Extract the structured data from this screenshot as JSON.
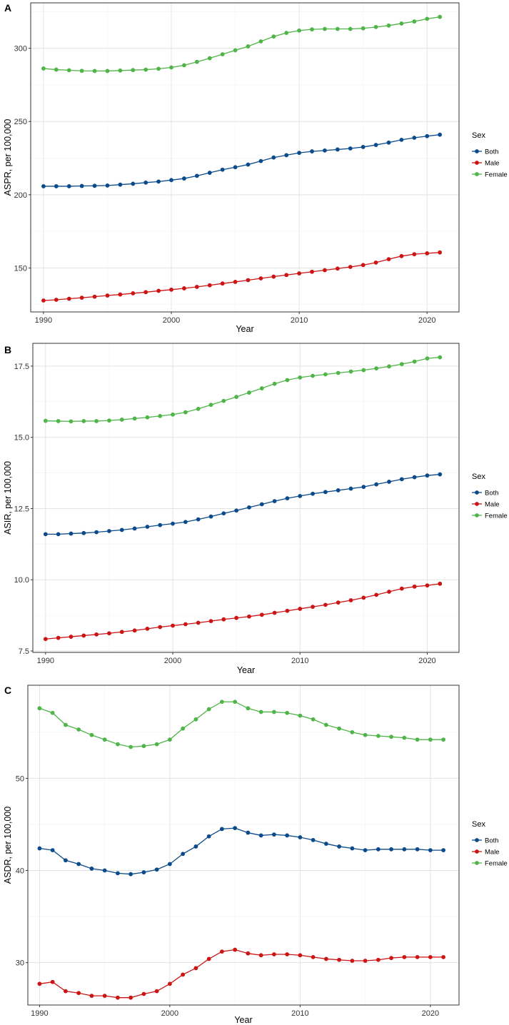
{
  "colors": {
    "Both": "#0b4a8b",
    "Male": "#cc1414",
    "Female": "#4fb548"
  },
  "legend": {
    "title": "Sex",
    "entries": [
      "Both",
      "Male",
      "Female"
    ]
  },
  "chart_data": [
    {
      "type": "line",
      "panel": "A",
      "xlabel": "Year",
      "ylabel": "ASPR, per 100,000",
      "xlim": [
        1989,
        2022.5
      ],
      "ylim": [
        120,
        331
      ],
      "xticks": [
        1990,
        2000,
        2010,
        2020
      ],
      "yticks": [
        150,
        200,
        250,
        300
      ],
      "grid": true,
      "legend_position": "right",
      "x": [
        1990,
        1991,
        1992,
        1993,
        1994,
        1995,
        1996,
        1997,
        1998,
        1999,
        2000,
        2001,
        2002,
        2003,
        2004,
        2005,
        2006,
        2007,
        2008,
        2009,
        2010,
        2011,
        2012,
        2013,
        2014,
        2015,
        2016,
        2017,
        2018,
        2019,
        2020,
        2021
      ],
      "series": [
        {
          "name": "Both",
          "values": [
            205.8,
            205.8,
            205.8,
            206.0,
            206.1,
            206.3,
            206.9,
            207.5,
            208.3,
            209.0,
            210.0,
            211.1,
            212.9,
            215.0,
            217.1,
            218.8,
            220.6,
            223.0,
            225.4,
            227.0,
            228.6,
            229.6,
            230.2,
            230.9,
            231.6,
            232.6,
            234.0,
            235.6,
            237.5,
            238.9,
            240.0,
            241.0
          ]
        },
        {
          "name": "Male",
          "values": [
            127.8,
            128.3,
            129.0,
            129.7,
            130.4,
            131.2,
            131.9,
            132.7,
            133.5,
            134.4,
            135.2,
            136.1,
            137.1,
            138.2,
            139.4,
            140.5,
            141.7,
            142.9,
            144.1,
            145.2,
            146.3,
            147.4,
            148.5,
            149.6,
            150.7,
            152.0,
            153.7,
            156.0,
            158.1,
            159.4,
            160.0,
            160.6
          ]
        },
        {
          "name": "Female",
          "values": [
            286.2,
            285.4,
            285.0,
            284.6,
            284.5,
            284.5,
            284.8,
            285.1,
            285.4,
            286.0,
            286.9,
            288.4,
            290.7,
            293.2,
            295.9,
            298.6,
            301.3,
            304.7,
            308.0,
            310.5,
            312.1,
            312.9,
            313.2,
            313.2,
            313.2,
            313.6,
            314.5,
            315.5,
            316.9,
            318.3,
            320.1,
            321.4
          ]
        }
      ]
    },
    {
      "type": "line",
      "panel": "B",
      "xlabel": "Year",
      "ylabel": "ASIR, per 100,000",
      "xlim": [
        1989,
        2022.5
      ],
      "ylim": [
        7.45,
        18.3
      ],
      "xticks": [
        1990,
        2000,
        2010,
        2020
      ],
      "yticks": [
        7.5,
        10.0,
        12.5,
        15.0,
        17.5
      ],
      "yticklabels": [
        "7.5",
        "10.0",
        "12.5",
        "15.0",
        "17.5"
      ],
      "grid": true,
      "legend_position": "right",
      "x": [
        1990,
        1991,
        1992,
        1993,
        1994,
        1995,
        1996,
        1997,
        1998,
        1999,
        2000,
        2001,
        2002,
        2003,
        2004,
        2005,
        2006,
        2007,
        2008,
        2009,
        2010,
        2011,
        2012,
        2013,
        2014,
        2015,
        2016,
        2017,
        2018,
        2019,
        2020,
        2021
      ],
      "series": [
        {
          "name": "Both",
          "values": [
            11.6,
            11.6,
            11.62,
            11.64,
            11.67,
            11.71,
            11.75,
            11.8,
            11.86,
            11.92,
            11.97,
            12.03,
            12.12,
            12.22,
            12.33,
            12.43,
            12.54,
            12.65,
            12.76,
            12.86,
            12.94,
            13.02,
            13.08,
            13.14,
            13.2,
            13.26,
            13.35,
            13.44,
            13.53,
            13.6,
            13.66,
            13.7
          ]
        },
        {
          "name": "Male",
          "values": [
            7.92,
            7.96,
            8.0,
            8.04,
            8.08,
            8.12,
            8.17,
            8.22,
            8.28,
            8.34,
            8.39,
            8.44,
            8.49,
            8.55,
            8.61,
            8.66,
            8.71,
            8.77,
            8.84,
            8.91,
            8.98,
            9.05,
            9.12,
            9.2,
            9.28,
            9.37,
            9.47,
            9.58,
            9.69,
            9.76,
            9.8,
            9.86
          ]
        },
        {
          "name": "Female",
          "values": [
            15.58,
            15.57,
            15.56,
            15.57,
            15.57,
            15.59,
            15.62,
            15.66,
            15.7,
            15.75,
            15.8,
            15.88,
            16.0,
            16.14,
            16.28,
            16.42,
            16.57,
            16.72,
            16.88,
            17.01,
            17.1,
            17.16,
            17.21,
            17.26,
            17.31,
            17.36,
            17.42,
            17.49,
            17.57,
            17.66,
            17.77,
            17.81
          ]
        }
      ]
    },
    {
      "type": "line",
      "panel": "C",
      "xlabel": "Year",
      "ylabel": "ASDR, per 100,000",
      "xlim": [
        1989.1,
        2022.2
      ],
      "ylim": [
        25.4,
        60.1
      ],
      "xticks": [
        1990,
        2000,
        2010,
        2020
      ],
      "yticks": [
        30,
        40,
        50
      ],
      "grid": true,
      "legend_position": "right",
      "x": [
        1990,
        1991,
        1992,
        1993,
        1994,
        1995,
        1996,
        1997,
        1998,
        1999,
        2000,
        2001,
        2002,
        2003,
        2004,
        2005,
        2006,
        2007,
        2008,
        2009,
        2010,
        2011,
        2012,
        2013,
        2014,
        2015,
        2016,
        2017,
        2018,
        2019,
        2020,
        2021
      ],
      "series": [
        {
          "name": "Both",
          "values": [
            42.4,
            42.2,
            41.1,
            40.7,
            40.2,
            40.0,
            39.7,
            39.6,
            39.8,
            40.1,
            40.7,
            41.8,
            42.6,
            43.7,
            44.5,
            44.6,
            44.1,
            43.8,
            43.9,
            43.8,
            43.6,
            43.3,
            42.9,
            42.6,
            42.4,
            42.2,
            42.3,
            42.3,
            42.3,
            42.3,
            42.2,
            42.2
          ]
        },
        {
          "name": "Male",
          "values": [
            27.7,
            27.9,
            26.9,
            26.7,
            26.4,
            26.4,
            26.2,
            26.2,
            26.6,
            26.9,
            27.7,
            28.7,
            29.4,
            30.4,
            31.2,
            31.4,
            31.0,
            30.8,
            30.9,
            30.9,
            30.8,
            30.6,
            30.4,
            30.3,
            30.2,
            30.2,
            30.3,
            30.5,
            30.6,
            30.6,
            30.6,
            30.6
          ]
        },
        {
          "name": "Female",
          "values": [
            57.6,
            57.1,
            55.8,
            55.3,
            54.7,
            54.2,
            53.7,
            53.4,
            53.5,
            53.7,
            54.2,
            55.4,
            56.4,
            57.5,
            58.3,
            58.3,
            57.6,
            57.2,
            57.2,
            57.1,
            56.8,
            56.4,
            55.8,
            55.4,
            55.0,
            54.7,
            54.6,
            54.5,
            54.4,
            54.2,
            54.2,
            54.2
          ]
        }
      ]
    }
  ]
}
